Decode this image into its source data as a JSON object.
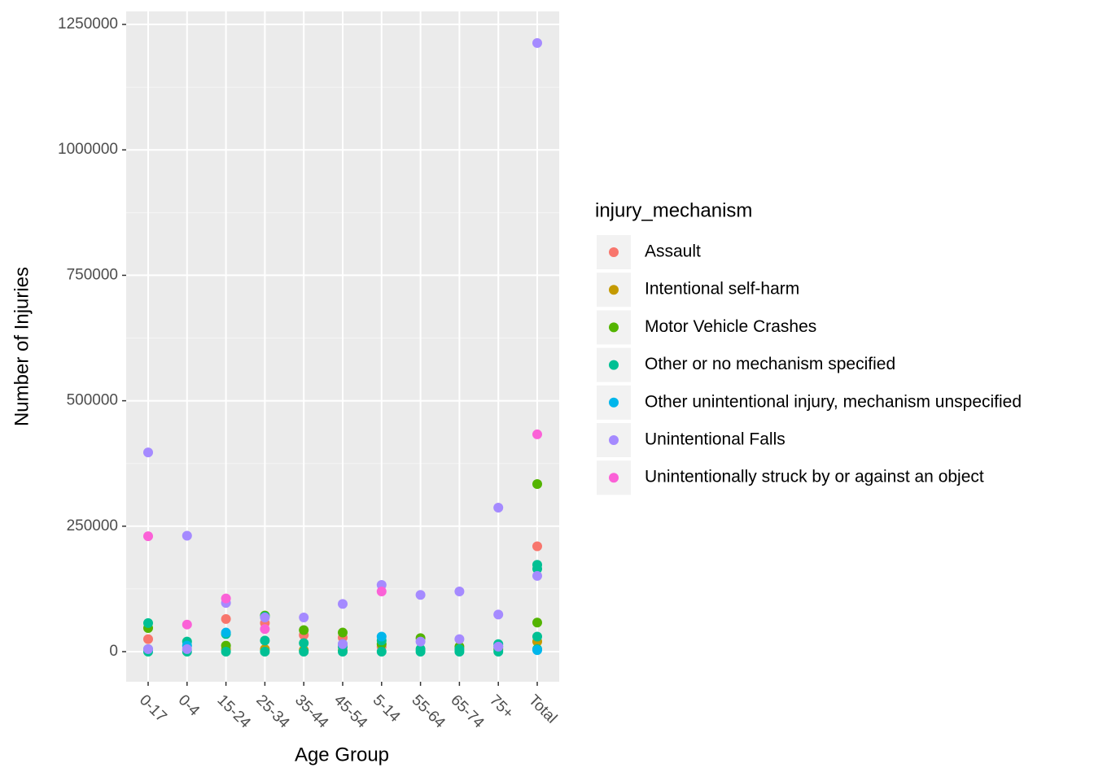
{
  "chart_data": {
    "type": "scatter",
    "xlabel": "Age Group",
    "ylabel": "Number of Injuries",
    "legend_title": "injury_mechanism",
    "legend": "right",
    "grid": true,
    "categories": [
      "0-17",
      "0-4",
      "15-24",
      "25-34",
      "35-44",
      "45-54",
      "5-14",
      "55-64",
      "65-74",
      "75+",
      "Total"
    ],
    "ylim": [
      -60000,
      1276000
    ],
    "yticks": [
      0,
      250000,
      500000,
      750000,
      1000000,
      1250000
    ],
    "series": [
      {
        "name": "Assault",
        "color": "#F8766D",
        "x": [
          "0-17",
          "15-24",
          "25-34",
          "35-44",
          "45-54",
          "5-14",
          "Total"
        ],
        "values": [
          25000,
          65000,
          57000,
          33000,
          28000,
          10000,
          210000
        ]
      },
      {
        "name": "Intentional self-harm",
        "color": "#C49A00",
        "x": [
          "15-24",
          "25-34",
          "35-44",
          "45-54",
          "Total"
        ],
        "values": [
          5000,
          5000,
          3000,
          2000,
          20000
        ]
      },
      {
        "name": "Motor Vehicle Crashes",
        "color": "#53B400",
        "x": [
          "0-17",
          "15-24",
          "25-34",
          "35-44",
          "45-54",
          "5-14",
          "55-64",
          "65-74",
          "75+",
          "Total",
          "Total"
        ],
        "values": [
          47000,
          12000,
          72000,
          43000,
          38000,
          15000,
          27000,
          10000,
          5000,
          334000,
          58000
        ]
      },
      {
        "name": "Other or no mechanism specified",
        "color": "#00C094",
        "x": [
          "0-17",
          "0-17",
          "0-4",
          "0-4",
          "15-24",
          "15-24",
          "25-34",
          "25-34",
          "25-34",
          "35-44",
          "35-44",
          "45-54",
          "45-54",
          "5-14",
          "5-14",
          "55-64",
          "55-64",
          "65-74",
          "65-74",
          "75+",
          "75+",
          "Total",
          "Total",
          "Total",
          "Total"
        ],
        "values": [
          57000,
          0,
          20000,
          0,
          35000,
          0,
          70000,
          22000,
          0,
          17000,
          0,
          10000,
          0,
          22000,
          0,
          5000,
          0,
          5000,
          0,
          15000,
          0,
          173000,
          165000,
          30000,
          5000
        ]
      },
      {
        "name": "Other unintentional injury, mechanism unspecified",
        "color": "#00B6EB",
        "x": [
          "0-17",
          "0-4",
          "15-24",
          "45-54",
          "5-14",
          "75+",
          "Total"
        ],
        "values": [
          5000,
          12000,
          38000,
          15000,
          30000,
          10000,
          3000
        ]
      },
      {
        "name": "Unintentional Falls",
        "color": "#A58AFF",
        "x": [
          "0-17",
          "0-17",
          "0-4",
          "0-4",
          "15-24",
          "25-34",
          "35-44",
          "45-54",
          "45-54",
          "5-14",
          "55-64",
          "55-64",
          "65-74",
          "65-74",
          "75+",
          "75+",
          "75+",
          "Total",
          "Total"
        ],
        "values": [
          397000,
          5000,
          231000,
          5000,
          97000,
          68000,
          68000,
          95000,
          15000,
          133000,
          113000,
          20000,
          120000,
          25000,
          287000,
          74000,
          10000,
          1213000,
          151000
        ]
      },
      {
        "name": "Unintentionally struck by or against an object",
        "color": "#FB61D7",
        "x": [
          "0-17",
          "0-4",
          "15-24",
          "25-34",
          "5-14",
          "Total"
        ],
        "values": [
          230000,
          54000,
          106000,
          45000,
          120000,
          433000
        ]
      }
    ]
  }
}
